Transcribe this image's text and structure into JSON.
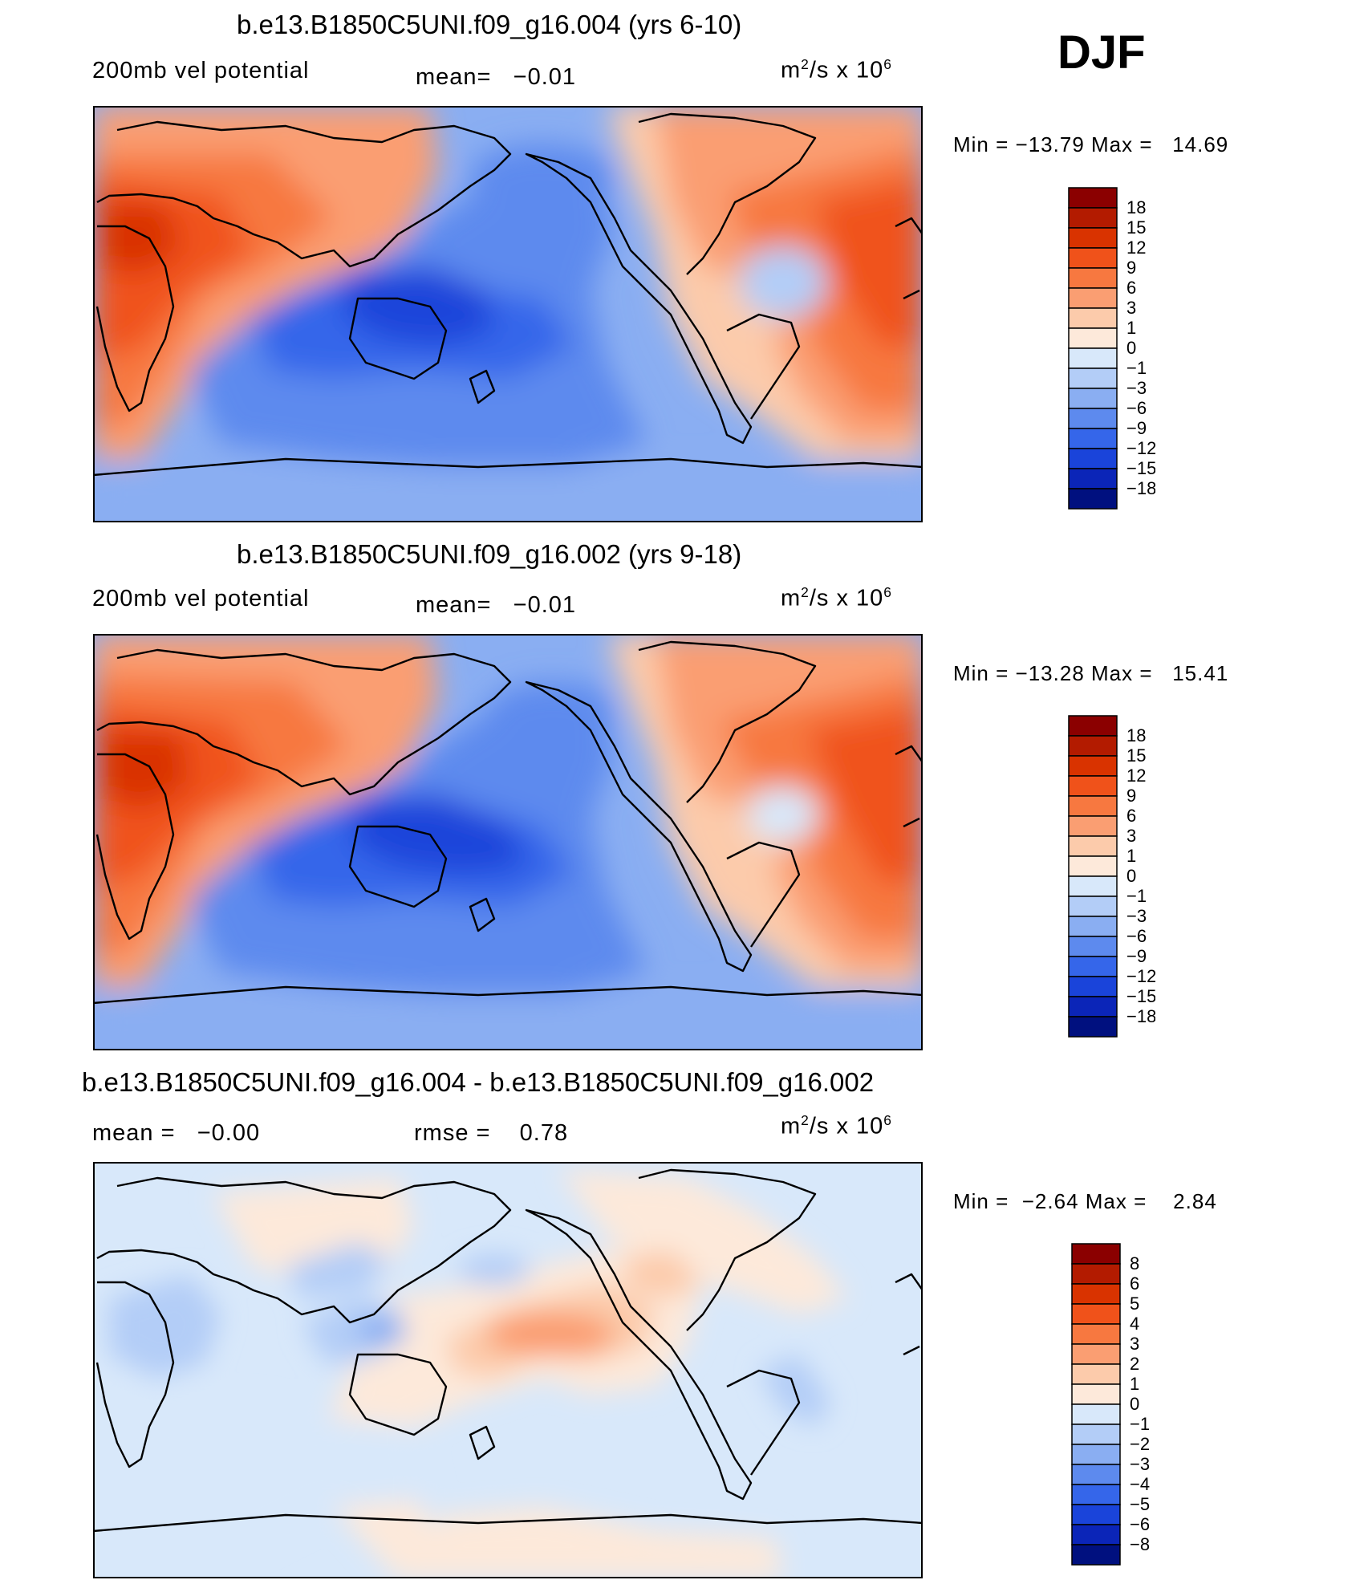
{
  "season": "DJF",
  "panels": [
    {
      "id": "p1",
      "title": "b.e13.B1850C5UNI.f09_g16.004 (yrs 6-10)",
      "left_text": "200mb vel potential",
      "mid_text": "mean=   −0.01",
      "units_base": "m",
      "units_sup1": "2",
      "units_mid": "/s x 10",
      "units_sup2": "6",
      "minmax": "Min = −13.79 Max =   14.69",
      "colorbar": {
        "labels": [
          "18",
          "15",
          "12",
          "9",
          "6",
          "3",
          "1",
          "0",
          "−1",
          "−3",
          "−6",
          "−9",
          "−12",
          "−15",
          "−18"
        ],
        "colors": [
          "#8b0000",
          "#b31b00",
          "#d93300",
          "#f0521a",
          "#f77840",
          "#fa9e72",
          "#fccbab",
          "#fde9da",
          "#d8e8fa",
          "#b3cdf7",
          "#8aaef2",
          "#5d8aee",
          "#3566ea",
          "#1a44da",
          "#0b25b8",
          "#00107f"
        ]
      }
    },
    {
      "id": "p2",
      "title": "b.e13.B1850C5UNI.f09_g16.002 (yrs 9-18)",
      "left_text": "200mb vel potential",
      "mid_text": "mean=   −0.01",
      "units_base": "m",
      "units_sup1": "2",
      "units_mid": "/s x 10",
      "units_sup2": "6",
      "minmax": "Min = −13.28 Max =   15.41",
      "colorbar": {
        "labels": [
          "18",
          "15",
          "12",
          "9",
          "6",
          "3",
          "1",
          "0",
          "−1",
          "−3",
          "−6",
          "−9",
          "−12",
          "−15",
          "−18"
        ],
        "colors": [
          "#8b0000",
          "#b31b00",
          "#d93300",
          "#f0521a",
          "#f77840",
          "#fa9e72",
          "#fccbab",
          "#fde9da",
          "#d8e8fa",
          "#b3cdf7",
          "#8aaef2",
          "#5d8aee",
          "#3566ea",
          "#1a44da",
          "#0b25b8",
          "#00107f"
        ]
      }
    },
    {
      "id": "p3",
      "title": "b.e13.B1850C5UNI.f09_g16.004 - b.e13.B1850C5UNI.f09_g16.002",
      "left_text": "mean =   −0.00",
      "mid_text": "rmse =    0.78",
      "units_base": "m",
      "units_sup1": "2",
      "units_mid": "/s x 10",
      "units_sup2": "6",
      "minmax": "Min =  −2.64 Max =    2.84",
      "colorbar": {
        "labels": [
          "8",
          "6",
          "5",
          "4",
          "3",
          "2",
          "1",
          "0",
          "−1",
          "−2",
          "−3",
          "−4",
          "−5",
          "−6",
          "−8"
        ],
        "colors": [
          "#8b0000",
          "#b31b00",
          "#d93300",
          "#f0521a",
          "#f77840",
          "#fa9e72",
          "#fccbab",
          "#fde9da",
          "#d8e8fa",
          "#b3cdf7",
          "#8aaef2",
          "#5d8aee",
          "#3566ea",
          "#1a44da",
          "#0b25b8",
          "#00107f"
        ]
      }
    }
  ]
}
